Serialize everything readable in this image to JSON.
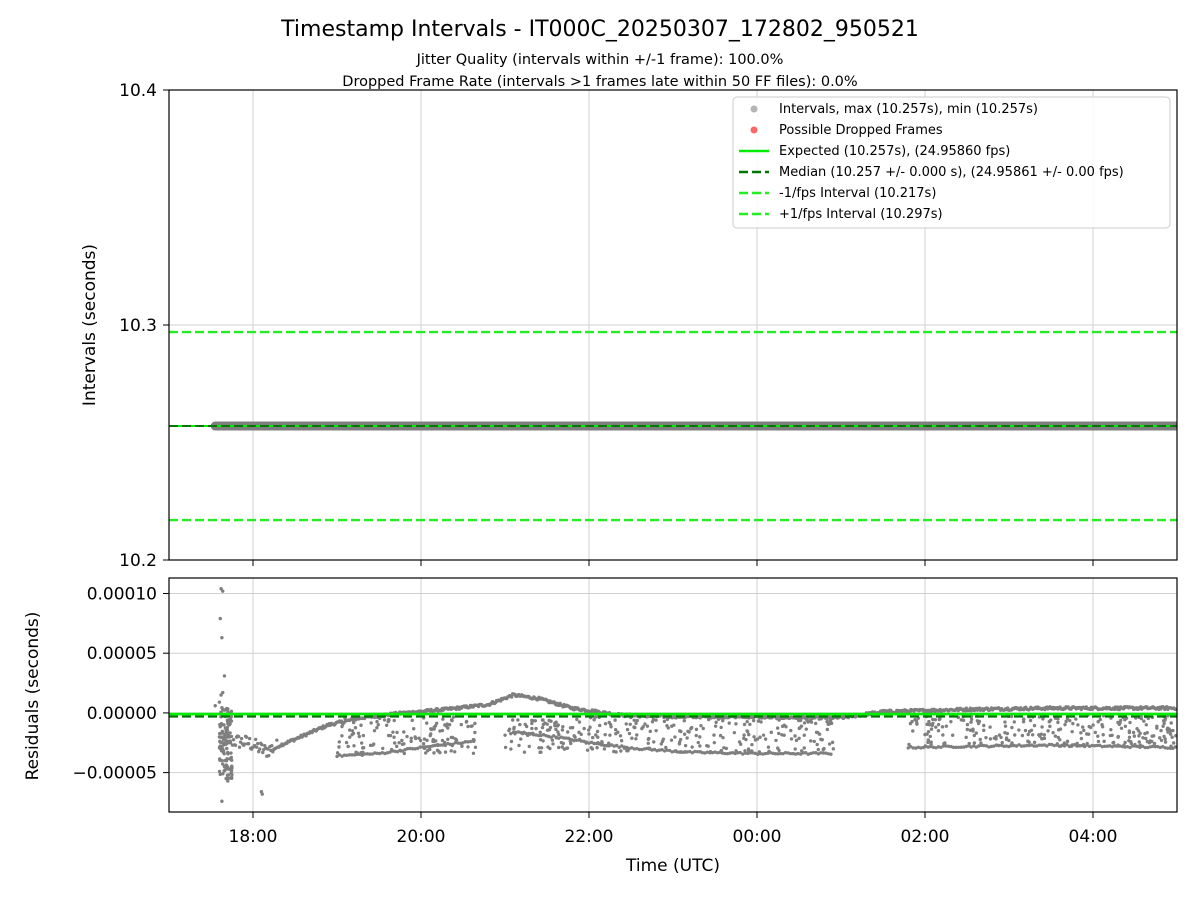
{
  "figure": {
    "title": "Timestamp Intervals - IT000C_20250307_172802_950521",
    "subtitle_1": "Jitter Quality (intervals within +/-1 frame): 100.0%",
    "subtitle_2": "Dropped Frame Rate (intervals >1 frames late within 50 FF files): 0.0%"
  },
  "colors": {
    "interval_points": "#7f7f7f",
    "legend_interval_marker": "#b3b3b3",
    "dropped_frames": "#ff6666",
    "expected_line": "#00ee00",
    "median_line": "#007700",
    "fps_bound_lines": "#22ee22",
    "grid": "#d0d0d0",
    "axes": "#000000"
  },
  "chart_data": [
    {
      "type": "scatter",
      "ylabel": "Intervals (seconds)",
      "x_axis": {
        "type": "time",
        "start": "17:00",
        "end": "05:00",
        "start_hours": 17.0,
        "end_hours": 29.0
      },
      "ylim": [
        10.2,
        10.4
      ],
      "yticks": [
        10.2,
        10.3,
        10.4
      ],
      "ytick_labels": [
        "10.2",
        "10.3",
        "10.4"
      ],
      "grid": true,
      "legend_position": "upper-right",
      "legend": [
        "Intervals, max (10.257s), min (10.257s)",
        "Possible Dropped Frames",
        "Expected (10.257s), (24.95860 fps)",
        "Median (10.257 +/- 0.000 s), (24.95861 +/- 0.00 fps)",
        "-1/fps Interval (10.217s)",
        "+1/fps Interval (10.297s)"
      ],
      "series": [
        {
          "name": "Intervals",
          "x_range_hours": [
            17.55,
            29.0
          ],
          "y": 10.257
        },
        {
          "name": "Expected",
          "y": 10.257
        },
        {
          "name": "Median",
          "y": 10.257
        },
        {
          "name": "-1/fps Interval",
          "y": 10.217
        },
        {
          "name": "+1/fps Interval",
          "y": 10.297
        }
      ]
    },
    {
      "type": "scatter",
      "xlabel": "Time (UTC)",
      "ylabel": "Residuals (seconds)",
      "x_axis": {
        "type": "time",
        "start": "17:00",
        "end": "05:00",
        "start_hours": 17.0,
        "end_hours": 29.0
      },
      "xticks_hours": [
        18,
        20,
        22,
        24,
        26,
        28
      ],
      "xtick_labels": [
        "18:00",
        "20:00",
        "22:00",
        "00:00",
        "02:00",
        "04:00"
      ],
      "ylim": [
        -8.3e-05,
        0.000113
      ],
      "yticks": [
        -5e-05,
        0.0,
        5e-05,
        0.0001
      ],
      "ytick_labels": [
        "−0.00005",
        "0.00000",
        "0.00005",
        "0.00010"
      ],
      "grid": true,
      "reference_lines": [
        {
          "name": "Expected",
          "y": -1e-06
        },
        {
          "name": "Median",
          "y": -3e-06
        }
      ],
      "residual_trend": [
        [
          17.6,
          -2.2e-05
        ],
        [
          17.95,
          -2.5e-05
        ],
        [
          18.15,
          -3.2e-05
        ],
        [
          18.5,
          -2.2e-05
        ],
        [
          18.9,
          -1e-05
        ],
        [
          19.3,
          -4e-06
        ],
        [
          19.8,
          0.0
        ],
        [
          20.3,
          3e-06
        ],
        [
          20.8,
          7e-06
        ],
        [
          21.1,
          1.5e-05
        ],
        [
          21.4,
          1.2e-05
        ],
        [
          21.8,
          4e-06
        ],
        [
          22.4,
          -2e-06
        ],
        [
          23.0,
          -3e-06
        ],
        [
          23.8,
          -3e-06
        ],
        [
          24.5,
          -4e-06
        ],
        [
          25.0,
          -4e-06
        ],
        [
          25.5,
          1e-06
        ],
        [
          26.0,
          2e-06
        ],
        [
          26.5,
          3e-06
        ],
        [
          27.5,
          4e-06
        ],
        [
          28.5,
          4e-06
        ],
        [
          29.0,
          4e-06
        ]
      ],
      "lower_branches": [
        [
          [
            19.0,
            -3.6e-05
          ],
          [
            19.5,
            -3.4e-05
          ],
          [
            20.0,
            -2.9e-05
          ],
          [
            20.6,
            -2.4e-05
          ]
        ],
        [
          [
            21.1,
            -1.6e-05
          ],
          [
            21.6,
            -2e-05
          ],
          [
            22.1,
            -2.6e-05
          ],
          [
            22.6,
            -3e-05
          ],
          [
            23.2,
            -3.3e-05
          ],
          [
            24.0,
            -3.4e-05
          ],
          [
            24.9,
            -3.4e-05
          ]
        ],
        [
          [
            25.8,
            -2.9e-05
          ],
          [
            26.5,
            -2.8e-05
          ],
          [
            27.5,
            -2.7e-05
          ],
          [
            29.0,
            -2.9e-05
          ]
        ]
      ],
      "scatter_bands": [
        {
          "x": [
            19.0,
            20.65
          ],
          "y": [
            -3.4e-05,
            -3e-06
          ]
        },
        {
          "x": [
            21.0,
            24.95
          ],
          "y": [
            -3.3e-05,
            -2e-06
          ]
        },
        {
          "x": [
            25.8,
            29.0
          ],
          "y": [
            -2.8e-05,
            -2e-06
          ]
        }
      ],
      "outliers": [
        [
          17.62,
          0.000104
        ],
        [
          17.64,
          0.000102
        ],
        [
          17.61,
          7.9e-05
        ],
        [
          17.63,
          6.3e-05
        ],
        [
          17.66,
          3.1e-05
        ],
        [
          17.64,
          1.7e-05
        ],
        [
          17.62,
          1.5e-05
        ],
        [
          17.6,
          9e-06
        ],
        [
          17.63,
          -4e-05
        ],
        [
          17.66,
          -4.5e-05
        ],
        [
          17.68,
          -5.5e-05
        ],
        [
          17.7,
          -5.7e-05
        ],
        [
          17.63,
          -7.4e-05
        ],
        [
          18.1,
          -6.6e-05
        ],
        [
          18.11,
          -6.8e-05
        ],
        [
          17.55,
          6e-06
        ]
      ]
    }
  ]
}
